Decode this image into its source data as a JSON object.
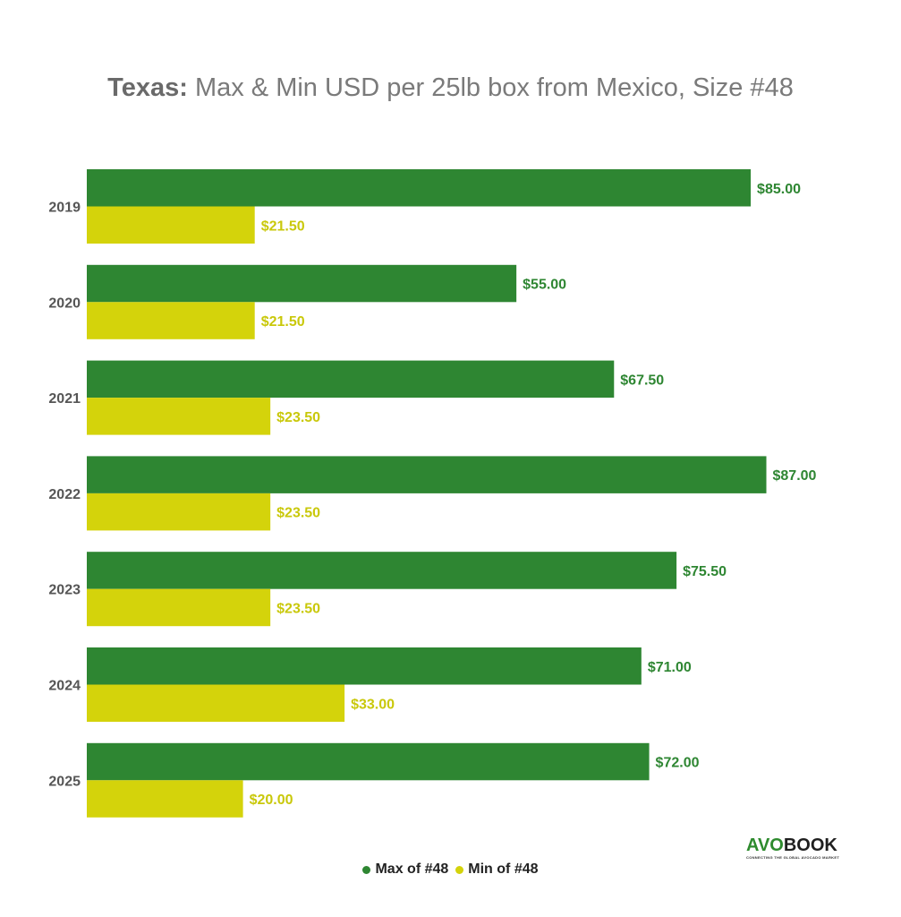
{
  "title": {
    "bold": "Texas:",
    "rest": " Max & Min USD per 25lb box from Mexico, Size #48"
  },
  "colors": {
    "max": "#2e8632",
    "min": "#d4d30b",
    "max_label": "#2e8632",
    "min_label": "#c9c80a"
  },
  "logo": {
    "brand_a": "AVO",
    "brand_b": "BOOK",
    "tagline": "CONNECTING THE GLOBAL AVOCADO MARKET"
  },
  "legend": [
    {
      "label": "Max of #48",
      "color": "#2e8632"
    },
    {
      "label": "Min of #48",
      "color": "#d4d30b"
    }
  ],
  "chart_data": {
    "type": "bar",
    "orientation": "horizontal",
    "categories": [
      "2019",
      "2020",
      "2021",
      "2022",
      "2023",
      "2024",
      "2025"
    ],
    "series": [
      {
        "name": "Max of #48",
        "values": [
          85.0,
          55.0,
          67.5,
          87.0,
          75.5,
          71.0,
          72.0
        ],
        "labels": [
          "$85.00",
          "$55.00",
          "$67.50",
          "$87.00",
          "$75.50",
          "$71.00",
          "$72.00"
        ]
      },
      {
        "name": "Min of #48",
        "values": [
          21.5,
          21.5,
          23.5,
          23.5,
          23.5,
          33.0,
          20.0
        ],
        "labels": [
          "$21.50",
          "$21.50",
          "$23.50",
          "$23.50",
          "$23.50",
          "$33.00",
          "$20.00"
        ]
      }
    ],
    "xlim": [
      0,
      100
    ],
    "grid": false,
    "legend_position": "bottom"
  }
}
